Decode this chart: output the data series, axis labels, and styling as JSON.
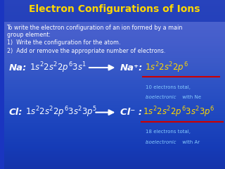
{
  "title": "Electron Configurations of Ions",
  "title_color": "#FFD700",
  "bg_color": "#1a35c0",
  "text_color": "#ffffff",
  "yellow_color": "#FFD700",
  "red_color": "#cc0000",
  "cyan_color": "#88ccff",
  "intro_text": "To write the electron configuration of an ion formed by a main\ngroup element:",
  "step1": "1)  Write the configuration for the atom.",
  "step2": "2)  Add or remove the appropriate number of electrons.",
  "na_label": "Na:",
  "na_config": "$1s^{2}2s^{2}2p^{6}3s^{1}$",
  "na_ion_label": "Na⁺:",
  "na_ion_config": "$1s^{2}2s^{2}2p^{6}$",
  "na_note1": "10 electrons total,",
  "na_note2": "isoelectronic",
  "na_note3": " with Ne",
  "cl_label": "Cl:",
  "cl_config": "$1s^{2}2s^{2}2p^{6}3s^{2}3p^{5}$",
  "cl_ion_label": "Cl⁻ :",
  "cl_ion_config": "$1s^{2}2s^{2}2p^{6}3s^{2}3p^{6}$",
  "cl_note1": "18 electrons total,",
  "cl_note2": "isoelectronic",
  "cl_note3": " with Ar"
}
